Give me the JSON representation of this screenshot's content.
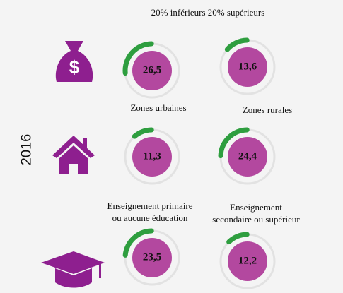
{
  "chart_data": {
    "type": "gauge",
    "year": "2016",
    "track_color": "#e2e2e2",
    "arc_color": "#2e9e3f",
    "fill_color": "#b3489f",
    "icon_color": "#8e1f8f",
    "groups": [
      {
        "header": "20% inférieurs 20% supérieurs",
        "items": [
          {
            "value": 26.5,
            "value_label": "26,5"
          },
          {
            "value": 13.6,
            "value_label": "13,6"
          }
        ]
      },
      {
        "items": [
          {
            "label": [
              "Zones urbaines"
            ],
            "value": 11.3,
            "value_label": "11,3"
          },
          {
            "label": [
              "Zones rurales"
            ],
            "value": 24.4,
            "value_label": "24,4"
          }
        ]
      },
      {
        "items": [
          {
            "label": [
              "Enseignement primaire",
              "ou aucune éducation"
            ],
            "value": 23.5,
            "value_label": "23,5"
          },
          {
            "label": [
              "Enseignement",
              "secondaire ou supérieur"
            ],
            "value": 12.2,
            "value_label": "12,2"
          }
        ]
      }
    ]
  }
}
